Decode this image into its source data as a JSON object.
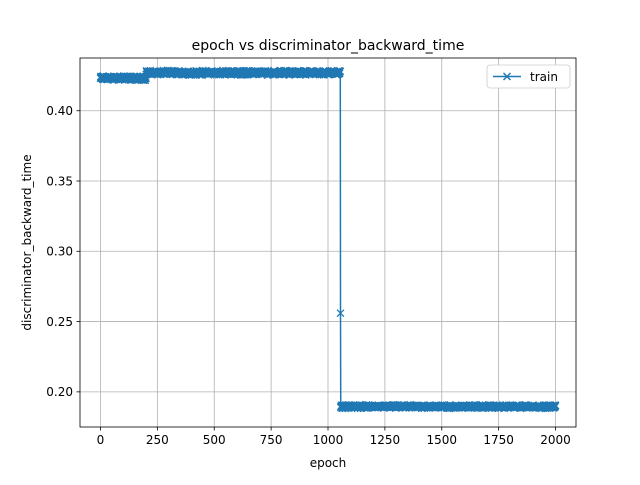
{
  "chart_data": {
    "type": "line",
    "title": "epoch vs discriminator_backward_time",
    "xlabel": "epoch",
    "ylabel": "discriminator_backward_time",
    "xlim": [
      -90,
      2090
    ],
    "ylim": [
      0.175,
      0.4375
    ],
    "x_ticks": [
      0,
      250,
      500,
      750,
      1000,
      1250,
      1500,
      1750,
      2000
    ],
    "y_ticks": [
      0.2,
      0.25,
      0.3,
      0.35,
      0.4
    ],
    "y_tick_format": 2,
    "grid": true,
    "legend_position": "top-right",
    "marker": "x",
    "series": [
      {
        "name": "train",
        "color": "#1f77b4",
        "segments": [
          {
            "x_start": 0,
            "x_end": 200,
            "y_mean": 0.4232,
            "y_noise": 0.0018
          },
          {
            "x_start": 201,
            "x_end": 1054,
            "y_mean": 0.427,
            "y_noise": 0.0018
          },
          {
            "x_start": 1055,
            "x_end": 1055,
            "y_mean": 0.256,
            "y_noise": 0
          },
          {
            "x_start": 1056,
            "x_end": 2000,
            "y_mean": 0.1895,
            "y_noise": 0.0014
          }
        ]
      }
    ]
  }
}
